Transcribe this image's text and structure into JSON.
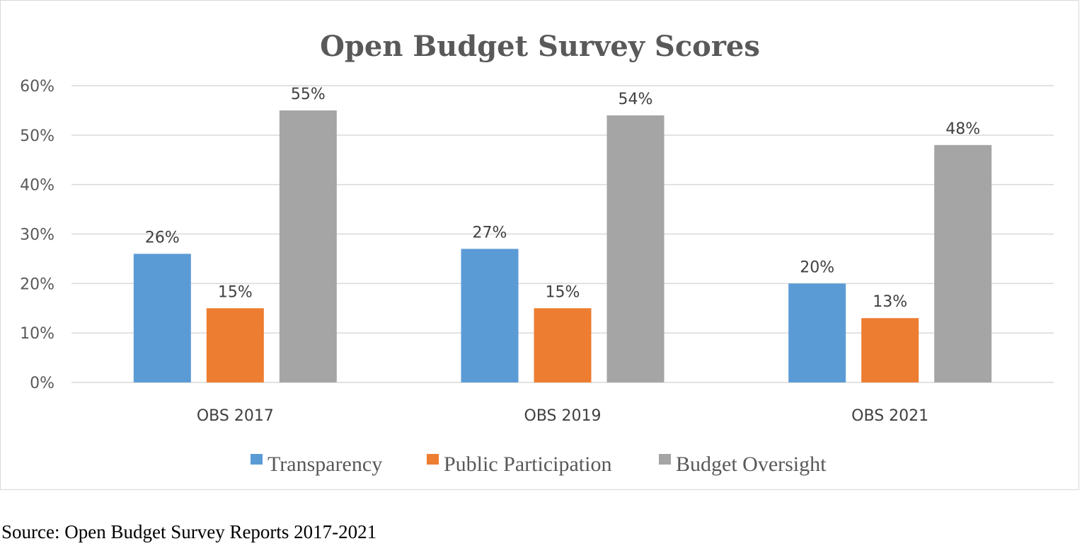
{
  "chart_data": {
    "type": "bar",
    "title": "Open Budget Survey Scores",
    "categories": [
      "OBS 2017",
      "OBS 2019",
      "OBS 2021"
    ],
    "series": [
      {
        "name": "Transparency",
        "values": [
          26,
          27,
          20
        ],
        "color": "#5B9BD5"
      },
      {
        "name": "Public Participation",
        "values": [
          15,
          15,
          13
        ],
        "color": "#ED7D31"
      },
      {
        "name": "Budget Oversight",
        "values": [
          55,
          54,
          48
        ],
        "color": "#A5A5A5"
      }
    ],
    "data_labels": [
      [
        "26%",
        "27%",
        "20%"
      ],
      [
        "15%",
        "15%",
        "13%"
      ],
      [
        "55%",
        "54%",
        "48%"
      ]
    ],
    "ylim": [
      0,
      60
    ],
    "yticks": [
      0,
      10,
      20,
      30,
      40,
      50,
      60
    ],
    "ytick_labels": [
      "0%",
      "10%",
      "20%",
      "30%",
      "40%",
      "50%",
      "60%"
    ],
    "xlabel": "",
    "ylabel": "",
    "grid": true,
    "legend_position": "bottom"
  },
  "source_note": "Source: Open Budget Survey Reports 2017-2021"
}
